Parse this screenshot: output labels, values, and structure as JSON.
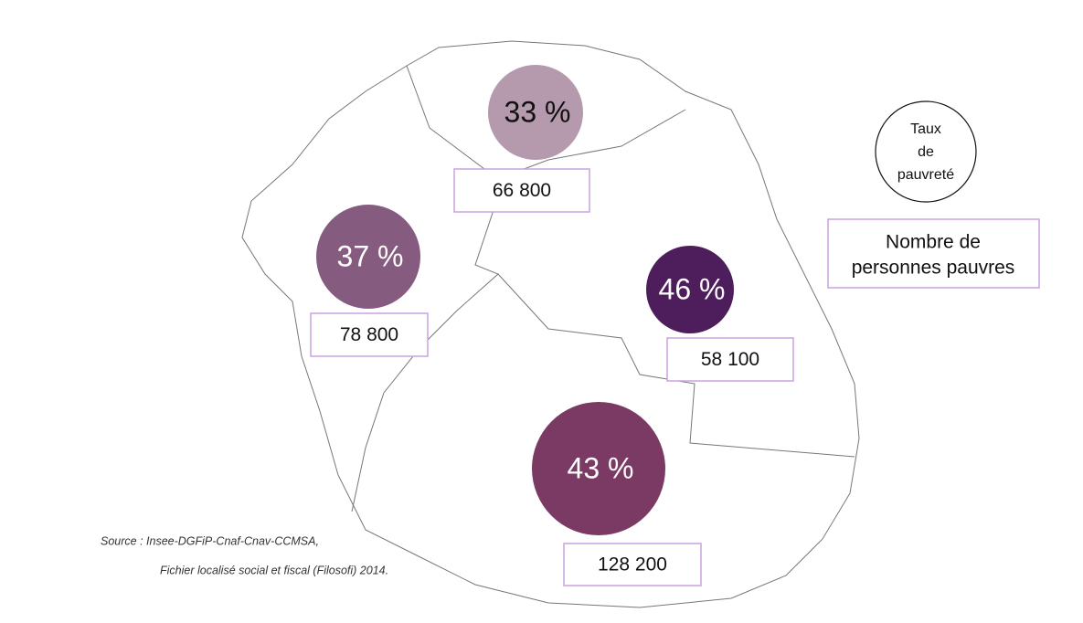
{
  "regions": [
    {
      "rate": "33 %",
      "count": "66 800",
      "color": "#b59aad"
    },
    {
      "rate": "37 %",
      "count": "78 800",
      "color": "#855b7f"
    },
    {
      "rate": "46 %",
      "count": "58 100",
      "color": "#4e1d5c"
    },
    {
      "rate": "43 %",
      "count": "128 200",
      "color": "#7a3a63"
    }
  ],
  "legend": {
    "rate": [
      "Taux",
      "de",
      "pauvreté"
    ],
    "count": [
      "Nombre de",
      "personnes pauvres"
    ]
  },
  "source": [
    "Source :  Insee-DGFiP-Cnaf-Cnav-CCMSA,",
    "Fichier localisé social et fiscal (Filosofi) 2014."
  ]
}
